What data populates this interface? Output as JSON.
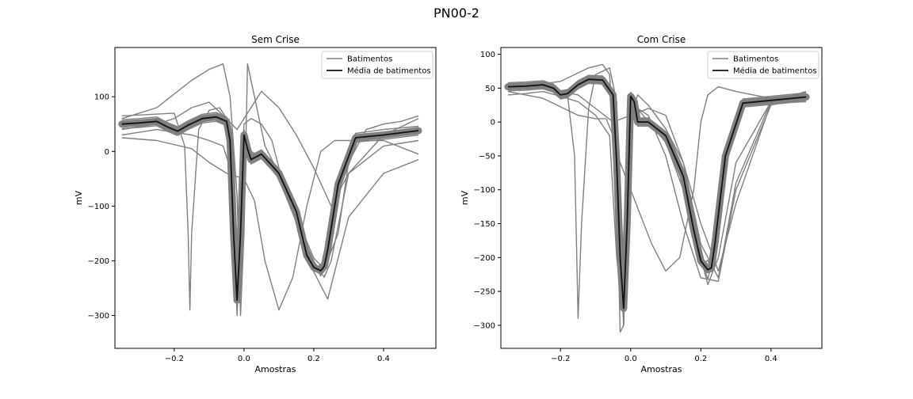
{
  "figure": {
    "suptitle": "PN00-2",
    "colors": {
      "beats": "#808080",
      "mean": "#111111",
      "frame": "#000000"
    }
  },
  "chart_data": [
    {
      "type": "line",
      "title": "Sem Crise",
      "xlabel": "Amostras",
      "ylabel": "mV",
      "xlim": [
        -0.37,
        0.55
      ],
      "ylim": [
        -360,
        190
      ],
      "xticks": [
        -0.2,
        0.0,
        0.2,
        0.4
      ],
      "xtick_labels": [
        "−0.2",
        "0.0",
        "0.2",
        "0.4"
      ],
      "yticks": [
        100,
        0,
        -100,
        -200,
        -300
      ],
      "ytick_labels": [
        "100",
        "0",
        "−100",
        "−200",
        "−300"
      ],
      "legend": {
        "position": "top-right",
        "entries": [
          "Batimentos",
          "Média de batimentos"
        ]
      },
      "grid": false,
      "series": [
        {
          "name": "Média de batimentos",
          "role": "mean",
          "x": [
            -0.35,
            -0.3,
            -0.25,
            -0.22,
            -0.19,
            -0.16,
            -0.12,
            -0.08,
            -0.05,
            -0.04,
            -0.03,
            -0.02,
            -0.01,
            0.0,
            0.01,
            0.02,
            0.05,
            0.1,
            0.15,
            0.18,
            0.2,
            0.22,
            0.23,
            0.24,
            0.27,
            0.32,
            0.4,
            0.5
          ],
          "y": [
            50,
            52,
            55,
            45,
            37,
            48,
            60,
            63,
            55,
            20,
            -150,
            -272,
            -150,
            30,
            5,
            -15,
            -5,
            -40,
            -110,
            -190,
            -212,
            -218,
            -210,
            -180,
            -60,
            25,
            30,
            38
          ]
        },
        {
          "name": "Batimentos",
          "role": "beats",
          "lines": [
            {
              "x": [
                -0.35,
                -0.3,
                -0.25,
                -0.22,
                -0.19,
                -0.16,
                -0.12,
                -0.08,
                -0.05,
                -0.04,
                -0.03,
                -0.02,
                -0.01,
                0.0,
                0.01,
                0.02,
                0.05,
                0.1,
                0.15,
                0.18,
                0.2,
                0.22,
                0.23,
                0.24,
                0.27,
                0.32,
                0.4,
                0.5
              ],
              "y": [
                58,
                60,
                63,
                53,
                45,
                56,
                68,
                71,
                63,
                28,
                -142,
                -300,
                -142,
                40,
                13,
                -7,
                3,
                -32,
                -102,
                -182,
                -204,
                -228,
                -202,
                -172,
                -52,
                33,
                40,
                46
              ]
            },
            {
              "x": [
                -0.35,
                -0.3,
                -0.25,
                -0.22,
                -0.19,
                -0.16,
                -0.12,
                -0.08,
                -0.05,
                -0.04,
                -0.03,
                -0.02,
                -0.01,
                0.0,
                0.01,
                0.02,
                0.05,
                0.1,
                0.15,
                0.18,
                0.2,
                0.22,
                0.23,
                0.24,
                0.27,
                0.32,
                0.4,
                0.5
              ],
              "y": [
                42,
                44,
                47,
                37,
                29,
                40,
                52,
                55,
                47,
                12,
                -158,
                -250,
                -158,
                20,
                -3,
                -23,
                -13,
                -48,
                -118,
                -198,
                -220,
                -206,
                -218,
                -188,
                -68,
                17,
                22,
                30
              ]
            },
            {
              "x": [
                -0.35,
                -0.2,
                -0.17,
                -0.16,
                -0.155,
                -0.15,
                -0.13,
                -0.1,
                -0.07,
                -0.05,
                -0.03,
                -0.02,
                -0.01,
                0.0,
                0.02,
                0.05,
                0.1,
                0.15,
                0.2,
                0.23,
                0.25,
                0.3,
                0.4,
                0.5
              ],
              "y": [
                65,
                70,
                10,
                -150,
                -290,
                -150,
                40,
                75,
                80,
                60,
                -60,
                -200,
                -100,
                20,
                0,
                -10,
                -50,
                -130,
                -200,
                -230,
                -200,
                -40,
                30,
                60
              ]
            },
            {
              "x": [
                -0.35,
                -0.25,
                -0.15,
                -0.1,
                -0.06,
                -0.04,
                -0.02,
                -0.01,
                0.0,
                0.01,
                0.03,
                0.06,
                0.1,
                0.15,
                0.2,
                0.24,
                0.3,
                0.4,
                0.5
              ],
              "y": [
                60,
                80,
                130,
                150,
                160,
                100,
                -80,
                -300,
                -150,
                160,
                100,
                10,
                -40,
                -110,
                -220,
                -270,
                -120,
                -40,
                -15
              ]
            },
            {
              "x": [
                -0.35,
                -0.3,
                -0.25,
                -0.2,
                -0.15,
                -0.1,
                -0.06,
                -0.03,
                -0.02,
                -0.01,
                0.0,
                0.02,
                0.05,
                0.08,
                0.1,
                0.15,
                0.2,
                0.23,
                0.27,
                0.3,
                0.35,
                0.4,
                0.45,
                0.5
              ],
              "y": [
                30,
                35,
                40,
                35,
                30,
                20,
                10,
                -50,
                -190,
                -60,
                50,
                60,
                50,
                20,
                -30,
                -120,
                -195,
                -215,
                -150,
                -20,
                40,
                50,
                55,
                65
              ]
            },
            {
              "x": [
                -0.35,
                -0.25,
                -0.15,
                -0.1,
                -0.05,
                0.0,
                0.03,
                0.06,
                0.1,
                0.14,
                0.18,
                0.22,
                0.26,
                0.3,
                0.35,
                0.4,
                0.5
              ],
              "y": [
                25,
                20,
                5,
                -20,
                -40,
                -50,
                -90,
                -200,
                -290,
                -230,
                -100,
                0,
                20,
                20,
                20,
                20,
                -5
              ]
            },
            {
              "x": [
                -0.35,
                -0.25,
                -0.2,
                -0.15,
                -0.1,
                -0.05,
                -0.02,
                0.0,
                0.05,
                0.1,
                0.15,
                0.2,
                0.25,
                0.3,
                0.4,
                0.5
              ],
              "y": [
                40,
                50,
                60,
                80,
                90,
                60,
                40,
                60,
                110,
                80,
                30,
                -30,
                -100,
                -40,
                10,
                20
              ]
            }
          ]
        }
      ]
    },
    {
      "type": "line",
      "title": "Com Crise",
      "xlabel": "Amostras",
      "ylabel": "mV",
      "xlim": [
        -0.37,
        0.545
      ],
      "ylim": [
        -334,
        110
      ],
      "xticks": [
        -0.2,
        0.0,
        0.2,
        0.4
      ],
      "xtick_labels": [
        "−0.2",
        "0.0",
        "0.2",
        "0.4"
      ],
      "yticks": [
        100,
        50,
        0,
        -50,
        -100,
        -150,
        -200,
        -250,
        -300
      ],
      "ytick_labels": [
        "100",
        "50",
        "0",
        "−50",
        "−100",
        "−150",
        "−200",
        "−250",
        "−300"
      ],
      "legend": {
        "position": "top-right",
        "entries": [
          "Batimentos",
          "Média de batimentos"
        ]
      },
      "grid": false,
      "series": [
        {
          "name": "Média de batimentos",
          "role": "mean",
          "x": [
            -0.35,
            -0.3,
            -0.25,
            -0.22,
            -0.2,
            -0.18,
            -0.15,
            -0.12,
            -0.08,
            -0.05,
            -0.04,
            -0.03,
            -0.02,
            -0.01,
            0.0,
            0.01,
            0.02,
            0.05,
            0.1,
            0.15,
            0.18,
            0.2,
            0.22,
            0.23,
            0.24,
            0.27,
            0.32,
            0.4,
            0.5
          ],
          "y": [
            52,
            53,
            55,
            50,
            40,
            42,
            55,
            63,
            62,
            40,
            -60,
            -200,
            -275,
            -150,
            38,
            30,
            0,
            0,
            -20,
            -80,
            -160,
            -205,
            -218,
            -215,
            -180,
            -50,
            28,
            32,
            37
          ]
        },
        {
          "name": "Batimentos",
          "role": "beats",
          "lines": [
            {
              "x": [
                -0.35,
                -0.3,
                -0.25,
                -0.22,
                -0.2,
                -0.18,
                -0.15,
                -0.12,
                -0.08,
                -0.05,
                -0.04,
                -0.03,
                -0.02,
                -0.01,
                0.0,
                0.01,
                0.02,
                0.05,
                0.1,
                0.15,
                0.18,
                0.2,
                0.22,
                0.23,
                0.24,
                0.27,
                0.32,
                0.4,
                0.5
              ],
              "y": [
                58,
                59,
                61,
                56,
                46,
                48,
                61,
                69,
                68,
                46,
                -54,
                -194,
                -300,
                -144,
                44,
                36,
                6,
                6,
                -14,
                -74,
                -154,
                -199,
                -232,
                -209,
                -174,
                -44,
                34,
                38,
                43
              ]
            },
            {
              "x": [
                -0.35,
                -0.3,
                -0.25,
                -0.22,
                -0.2,
                -0.18,
                -0.15,
                -0.12,
                -0.08,
                -0.05,
                -0.04,
                -0.03,
                -0.02,
                -0.01,
                0.0,
                0.01,
                0.02,
                0.05,
                0.1,
                0.15,
                0.18,
                0.2,
                0.22,
                0.23,
                0.24,
                0.27,
                0.32,
                0.4,
                0.5
              ],
              "y": [
                46,
                47,
                49,
                44,
                34,
                36,
                49,
                57,
                56,
                34,
                -66,
                -206,
                -250,
                -156,
                32,
                24,
                -6,
                -6,
                -26,
                -86,
                -166,
                -211,
                -204,
                -221,
                -186,
                -56,
                22,
                26,
                31
              ]
            },
            {
              "x": [
                -0.35,
                -0.25,
                -0.18,
                -0.16,
                -0.15,
                -0.14,
                -0.12,
                -0.1,
                -0.06,
                -0.04,
                -0.03,
                -0.02,
                0.0,
                0.02,
                0.05,
                0.1,
                0.15,
                0.2,
                0.22,
                0.25,
                0.3,
                0.4,
                0.5
              ],
              "y": [
                48,
                52,
                40,
                -50,
                -290,
                -150,
                20,
                70,
                80,
                30,
                -180,
                -300,
                35,
                20,
                0,
                -30,
                -100,
                -200,
                -240,
                -200,
                -60,
                30,
                40
              ]
            },
            {
              "x": [
                -0.35,
                -0.2,
                -0.12,
                -0.08,
                -0.06,
                -0.04,
                -0.03,
                -0.02,
                -0.01,
                0.0,
                0.02,
                0.05,
                0.1,
                0.15,
                0.2,
                0.25,
                0.3,
                0.4,
                0.5
              ],
              "y": [
                50,
                60,
                80,
                85,
                70,
                -100,
                -310,
                -300,
                -100,
                30,
                20,
                10,
                -50,
                -150,
                -230,
                -235,
                -100,
                25,
                35
              ]
            },
            {
              "x": [
                -0.35,
                -0.3,
                -0.25,
                -0.2,
                -0.15,
                -0.1,
                -0.06,
                -0.04,
                -0.02,
                0.0,
                0.02,
                0.05,
                0.1,
                0.15,
                0.2,
                0.25,
                0.3,
                0.4,
                0.5
              ],
              "y": [
                40,
                42,
                45,
                38,
                30,
                10,
                -20,
                -200,
                -280,
                10,
                40,
                25,
                -10,
                -60,
                -150,
                -220,
                -120,
                28,
                30
              ]
            },
            {
              "x": [
                -0.35,
                -0.25,
                -0.15,
                -0.1,
                -0.07,
                -0.05,
                -0.03,
                0.0,
                0.03,
                0.06,
                0.1,
                0.14,
                0.18,
                0.2,
                0.22,
                0.25,
                0.3,
                0.35,
                0.4,
                0.45,
                0.5
              ],
              "y": [
                45,
                35,
                10,
                5,
                5,
                -20,
                -60,
                -100,
                -140,
                -180,
                -220,
                -200,
                -100,
                0,
                40,
                52,
                45,
                40,
                35,
                34,
                33
              ]
            },
            {
              "x": [
                -0.35,
                -0.25,
                -0.2,
                -0.15,
                -0.1,
                -0.05,
                0.0,
                0.05,
                0.1,
                0.15,
                0.2,
                0.25,
                0.3,
                0.4,
                0.5
              ],
              "y": [
                50,
                55,
                45,
                40,
                20,
                0,
                10,
                20,
                10,
                -60,
                -180,
                -230,
                -90,
                30,
                45
              ]
            }
          ]
        }
      ]
    }
  ]
}
